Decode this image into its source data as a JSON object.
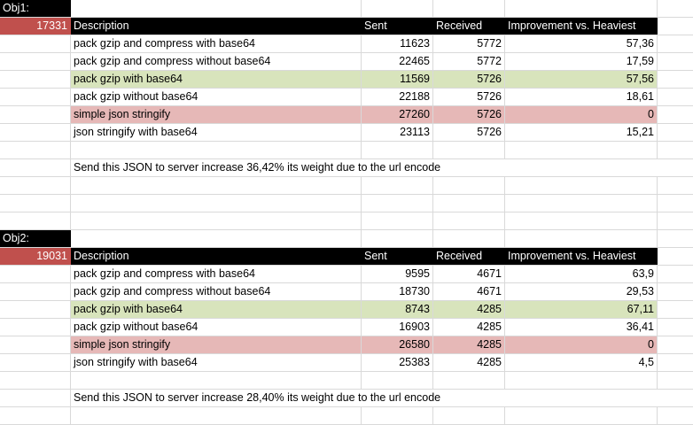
{
  "tables": [
    {
      "label": "Obj1:",
      "size": "17331",
      "headers": [
        "Description",
        "Sent",
        "Received",
        "Improvement vs. Heaviest"
      ],
      "rows": [
        [
          "pack gzip and compress with base64",
          "11623",
          "5772",
          "57,36"
        ],
        [
          "pack gzip and compress without base64",
          "22465",
          "5772",
          "17,59"
        ],
        [
          "pack gzip with base64",
          "11569",
          "5726",
          "57,56"
        ],
        [
          "pack gzip without base64",
          "22188",
          "5726",
          "18,61"
        ],
        [
          "simple json stringify",
          "27260",
          "5726",
          "0"
        ],
        [
          "json stringify with base64",
          "23113",
          "5726",
          "15,21"
        ]
      ],
      "note": "Send this JSON to server increase 36,42% its weight due to the url encode"
    },
    {
      "label": "Obj2:",
      "size": "19031",
      "headers": [
        "Description",
        "Sent",
        "Received",
        "Improvement vs. Heaviest"
      ],
      "rows": [
        [
          "pack gzip and compress with base64",
          "9595",
          "4671",
          "63,9"
        ],
        [
          "pack gzip and compress without base64",
          "18730",
          "4671",
          "29,53"
        ],
        [
          "pack gzip with base64",
          "8743",
          "4285",
          "67,11"
        ],
        [
          "pack gzip without base64",
          "16903",
          "4285",
          "36,41"
        ],
        [
          "simple json stringify",
          "26580",
          "4285",
          "0"
        ],
        [
          "json stringify with base64",
          "25383",
          "4285",
          "4,5"
        ]
      ],
      "note": "Send this JSON to server increase 28,40% its weight due to the url encode"
    }
  ],
  "colors": {
    "header_bg": "#000000",
    "size_cell_bg": "#c0504d",
    "best_row_bg": "#d8e4bc",
    "worst_row_bg": "#e6b8b7"
  }
}
